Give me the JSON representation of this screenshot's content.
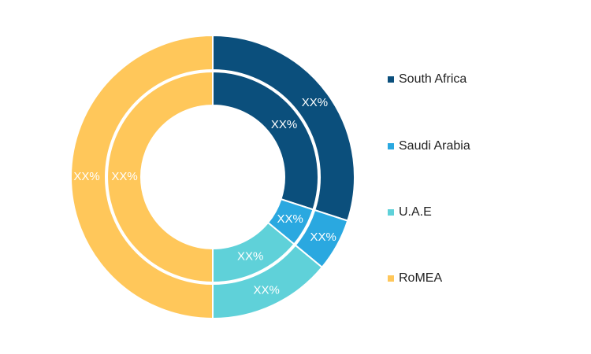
{
  "chart_data": {
    "type": "pie",
    "categories": [
      "South Africa",
      "Saudi Arabia",
      "U.A.E",
      "RoMEA"
    ],
    "colors": {
      "South Africa": "#0b4f7c",
      "Saudi Arabia": "#2aa8e0",
      "U.A.E": "#5fd1d9",
      "RoMEA": "#ffc75a"
    },
    "series": [
      {
        "ring": "outer",
        "values": [
          0.3,
          0.06,
          0.14,
          0.5
        ],
        "labels": [
          "XX%",
          "XX%",
          "XX%",
          "XX%"
        ]
      },
      {
        "ring": "inner",
        "values": [
          0.3,
          0.06,
          0.14,
          0.5
        ],
        "labels": [
          "XX%",
          "XX%",
          "XX%",
          "XX%"
        ]
      }
    ],
    "legend_position": "right"
  }
}
